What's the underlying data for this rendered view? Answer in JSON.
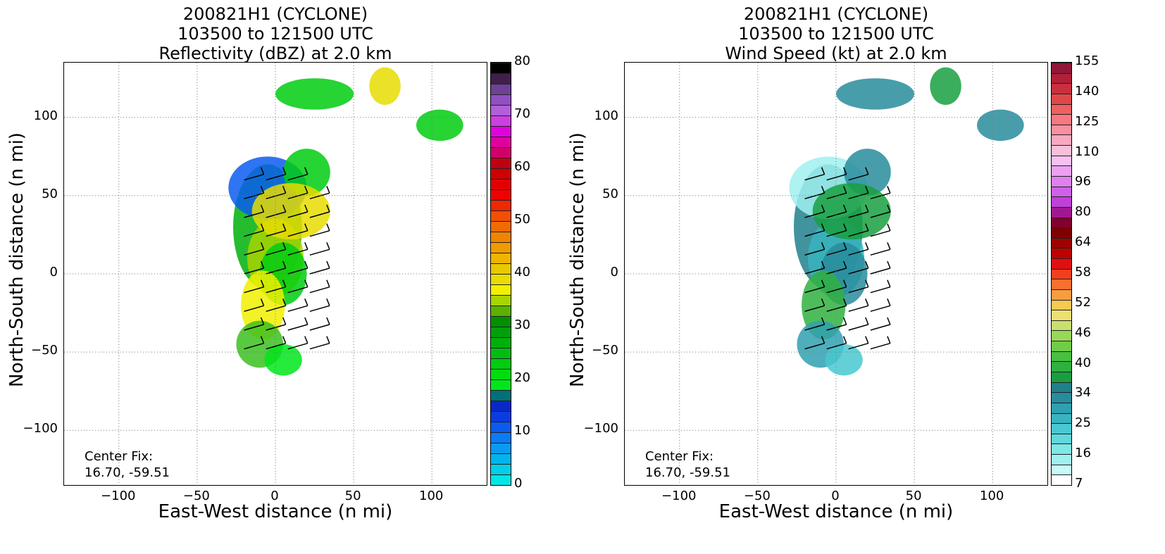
{
  "panels": [
    {
      "title_line1": "200821H1 (CYCLONE)",
      "title_line2": "103500 to 121500 UTC",
      "title_line3": "Reflectivity (dBZ) at 2.0 km",
      "xlabel": "East-West distance (n mi)",
      "ylabel": "North-South distance (n mi)",
      "xticks": [
        "−100",
        "−50",
        "0",
        "50",
        "100"
      ],
      "yticks": [
        "100",
        "50",
        "0",
        "−50",
        "−100"
      ],
      "center_fix_label": "Center Fix:",
      "center_fix_value": "16.70, -59.51",
      "colorbar": {
        "tick_labels": [
          "80",
          "70",
          "60",
          "50",
          "40",
          "30",
          "20",
          "10",
          "0"
        ],
        "colors": [
          "#00e5e5",
          "#00cfe6",
          "#00b4ee",
          "#0a9bf0",
          "#0a7cf5",
          "#0a5cf0",
          "#0a3ce0",
          "#0a28c8",
          "#00707a",
          "#00e61a",
          "#00dc10",
          "#00cc10",
          "#00be10",
          "#00b00a",
          "#00a00a",
          "#009000",
          "#5cb000",
          "#a8d400",
          "#f0f000",
          "#e8dc00",
          "#e8c800",
          "#f0b400",
          "#f09c00",
          "#f08400",
          "#f06c00",
          "#f05000",
          "#f02800",
          "#f00000",
          "#e00000",
          "#d00000",
          "#c00010",
          "#d0006a",
          "#e000a0",
          "#e000e0",
          "#cc40e0",
          "#b060d8",
          "#9050c0",
          "#704098",
          "#40204a",
          "#000000"
        ]
      }
    },
    {
      "title_line1": "200821H1 (CYCLONE)",
      "title_line2": "103500 to 121500 UTC",
      "title_line3": "Wind Speed (kt) at 2.0 km",
      "xlabel": "East-West distance (n mi)",
      "ylabel": "North-South distance (n mi)",
      "xticks": [
        "−100",
        "−50",
        "0",
        "50",
        "100"
      ],
      "yticks": [
        "100",
        "50",
        "0",
        "−50",
        "−100"
      ],
      "center_fix_label": "Center Fix:",
      "center_fix_value": "16.70, -59.51",
      "colorbar": {
        "tick_labels": [
          "155",
          "140",
          "125",
          "110",
          "96",
          "80",
          "64",
          "58",
          "52",
          "46",
          "40",
          "34",
          "25",
          "16",
          "7"
        ],
        "colors": [
          "#ffffff",
          "#c8fafa",
          "#a0f0f0",
          "#80e6e6",
          "#60d8dc",
          "#48c8d0",
          "#38b4c0",
          "#30a0b0",
          "#288c9c",
          "#20808c",
          "#18a040",
          "#30b040",
          "#48c040",
          "#70cc48",
          "#98d858",
          "#c8e070",
          "#ece070",
          "#f8c850",
          "#f89c40",
          "#f87030",
          "#f04020",
          "#e01010",
          "#c00000",
          "#a00000",
          "#800000",
          "#800030",
          "#a01890",
          "#c040d8",
          "#d060e8",
          "#e080f0",
          "#eca0f0",
          "#f8c0f0",
          "#f8c0d8",
          "#f8a8c0",
          "#f890a0",
          "#f87880",
          "#f06060",
          "#e04848",
          "#c83040",
          "#b02038",
          "#901838"
        ]
      }
    }
  ],
  "chart_data": [
    {
      "type": "heatmap",
      "title": "200821H1 (CYCLONE) 103500 to 121500 UTC Reflectivity (dBZ) at 2.0 km",
      "xlabel": "East-West distance (n mi)",
      "ylabel": "North-South distance (n mi)",
      "xlim": [
        -135,
        135
      ],
      "ylim": [
        -135,
        135
      ],
      "grid": true,
      "colorbar_range": [
        0,
        80
      ],
      "center_fix": [
        16.7,
        -59.51
      ]
    },
    {
      "type": "heatmap",
      "title": "200821H1 (CYCLONE) 103500 to 121500 UTC Wind Speed (kt) at 2.0 km",
      "xlabel": "East-West distance (n mi)",
      "ylabel": "North-South distance (n mi)",
      "xlim": [
        -135,
        135
      ],
      "ylim": [
        -135,
        135
      ],
      "grid": true,
      "colorbar_range": [
        0,
        160
      ],
      "center_fix": [
        16.7,
        -59.51
      ]
    }
  ]
}
